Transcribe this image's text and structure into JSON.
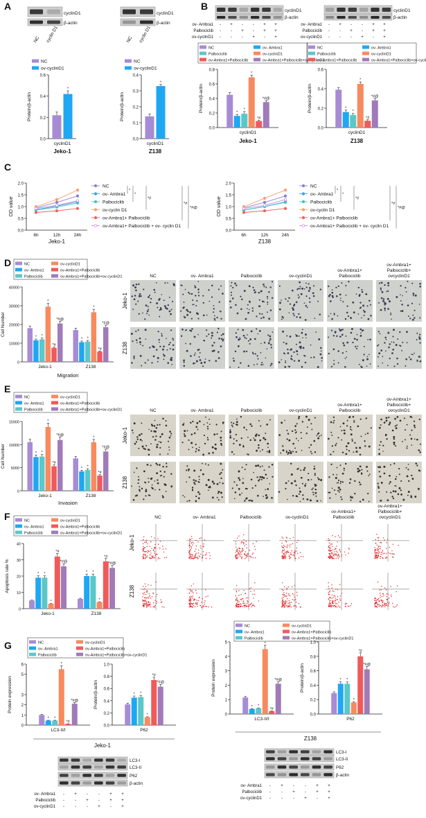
{
  "colors": {
    "NC": "#a78bd4",
    "ovAmbra1": "#1fa7f2",
    "palbociclib": "#5cc7c9",
    "ovCyclinD1": "#f78a5e",
    "ovAmbraPalbo": "#f05a5a",
    "ovAll": "#a07bb8",
    "line_NC": "#8c7fd4",
    "line_ambra": "#3aa0e8",
    "line_palbo": "#45c0c0",
    "line_cyc": "#f4a070",
    "line_ambpal": "#ee6262",
    "line_all": "#c48ad8"
  },
  "panels": {
    "A": {
      "letter": "A",
      "blot_labels": [
        "cyclinD1",
        "β-actin"
      ],
      "lanes": [
        "NC",
        "cyclin D1"
      ],
      "legend": [
        "NC",
        "ov-cyclinD1"
      ],
      "ylabel": "Protein/β-actin",
      "xcat": "cyclinD1",
      "cells": [
        "Jeko-1",
        "Z138"
      ]
    },
    "B": {
      "letter": "B",
      "blot_labels": [
        "cyclinD1",
        "β-actin"
      ],
      "treat_rows": [
        "ov- Ambra1",
        "Palbociclib",
        "ov-cyclinD1"
      ],
      "treat_signs": [
        [
          "-",
          "+",
          "-",
          "-",
          "+",
          "+"
        ],
        [
          "-",
          "-",
          "+",
          "-",
          "+",
          "+"
        ],
        [
          "-",
          "-",
          "-",
          "+",
          "-",
          "+"
        ]
      ],
      "legend": [
        "NC",
        "ov- Ambra1",
        "Palbociclib",
        "ov-cyclinD1",
        "ov-Ambra1+Palbociclib",
        "ov-Ambra1+Palbociclib+ov-cyclinD1"
      ],
      "ylabel": "Protein/β-actin",
      "xcat": "cyclinD1",
      "cells": [
        "Jeko-1",
        "Z138"
      ]
    },
    "C": {
      "letter": "C",
      "ylabel": "OD value",
      "times": [
        "6h",
        "12h",
        "24h"
      ],
      "legend": [
        "NC",
        "ov- Ambra1",
        "Palbociclib",
        "ov-cyclin D1",
        "ov-Ambra1+ Palbociclib",
        "ov-Ambra1+ Palbociclib + ov- cyclin D1"
      ],
      "sig": [
        "*",
        "*",
        "*#",
        "*#",
        "*#@"
      ],
      "cells": [
        "Jeko-1",
        "Z138"
      ]
    },
    "D": {
      "letter": "D",
      "legend": [
        "NC",
        "ov-cyclinD1",
        "ov- Ambra1",
        "ov-Ambra1+Palbociclib",
        "Palbociclib",
        "ov-Ambra1+Palbociclib+ov-cyclinD1"
      ],
      "ylabel": "Cell Number",
      "title": "Migration",
      "groups": [
        "NC",
        "ov- Ambra1",
        "Palbociclib",
        "ov-cyclinD1",
        "ov-Ambra1+\nPalbociclib",
        "ov-Ambra1+\nPalbociclib+\novcyclinD1"
      ],
      "rows": [
        "Jeko-1",
        "Z138"
      ],
      "cells": [
        "Jeko-1",
        "Z138"
      ]
    },
    "E": {
      "letter": "E",
      "legend": [
        "NC",
        "ov-cyclinD1",
        "ov- Ambra1",
        "ov-Ambra1+Palbociclib",
        "Palbociclib",
        "ov-Ambra1+Palbociclib+ov-cyclinD1"
      ],
      "ylabel": "Cell Number",
      "title": "Invasion",
      "groups": [
        "NC",
        "ov- Ambra1",
        "Palbociclib",
        "ov-cyclinD1",
        "ov-Ambra1+\nPalbociclib",
        "ov-Ambra1+\nPalbociclib+\novcyclinD1"
      ],
      "rows": [
        "Jeko-1",
        "Z138"
      ],
      "cells": [
        "Jeko-1",
        "Z138"
      ]
    },
    "F": {
      "letter": "F",
      "legend": [
        "NC",
        "ov-cyclinD1",
        "ov- Ambra1",
        "ov-Ambra1+Palbociclib",
        "Palbociclib",
        "ov-Ambra1+Palbociclib+ov-cyclinD1"
      ],
      "ylabel": "Apoptosis rate %",
      "groups": [
        "NC",
        "ov- Ambra1",
        "Palbociclib",
        "ov-cyclinD1",
        "ov-Ambra1+\nPalbociclib",
        "ov-Ambra1+\nPalbociclib+\novcyclinD1"
      ],
      "rows": [
        "Jeko-1",
        "Z138"
      ],
      "cells": [
        "Jeko-1",
        "Z138"
      ]
    },
    "G": {
      "letter": "G",
      "legend": [
        "NC",
        "ov-cyclinD1",
        "ov- Ambra1",
        "ov-Ambra1+Palbociclib",
        "Palbociclib",
        "ov-Ambra1+Palbociclib+ov-cyclinD1"
      ],
      "ylabel_left": "Protein expression",
      "ylabel_right": "Protein/β-actin",
      "xcat_left": "LC3-II/I",
      "xcat_right": "P62",
      "blot_labels": [
        "LC3-I",
        "LC3-II",
        "P62",
        "β-actin"
      ],
      "treat_rows": [
        "ov- Ambra1",
        "Palbociclib",
        "ov-cyclinD1"
      ],
      "treat_signs": [
        [
          "-",
          "+",
          "-",
          "-",
          "+",
          "+"
        ],
        [
          "-",
          "-",
          "+",
          "-",
          "+",
          "+"
        ],
        [
          "-",
          "-",
          "-",
          "+",
          "-",
          "+"
        ]
      ],
      "cells": [
        "Jeko-1",
        "Z138"
      ]
    }
  },
  "chart_data": [
    {
      "id": "A-Jeko1",
      "type": "bar",
      "title": "Jeko-1",
      "categories": [
        "cyclinD1"
      ],
      "ylabel": "Protein/β-actin",
      "ylim": [
        0,
        0.6
      ],
      "yticks": [
        0,
        0.2,
        0.4,
        0.6
      ],
      "series": [
        {
          "name": "NC",
          "values": [
            0.22
          ],
          "err": [
            0.03
          ]
        },
        {
          "name": "ov-cyclinD1",
          "values": [
            0.42
          ],
          "err": [
            0.03
          ],
          "sig": "*"
        }
      ]
    },
    {
      "id": "A-Z138",
      "type": "bar",
      "title": "Z138",
      "categories": [
        "cyclinD1"
      ],
      "ylabel": "Protein/β-actin",
      "ylim": [
        0,
        0.4
      ],
      "yticks": [
        0,
        0.1,
        0.2,
        0.3,
        0.4
      ],
      "series": [
        {
          "name": "NC",
          "values": [
            0.14
          ],
          "err": [
            0.015
          ]
        },
        {
          "name": "ov-cyclinD1",
          "values": [
            0.33
          ],
          "err": [
            0.01
          ],
          "sig": "*"
        }
      ]
    },
    {
      "id": "B-Jeko1",
      "type": "bar",
      "title": "Jeko-1",
      "categories": [
        "cyclinD1"
      ],
      "ylabel": "Protein/β-actin",
      "ylim": [
        0,
        0.8
      ],
      "yticks": [
        0,
        0.2,
        0.4,
        0.6,
        0.8
      ],
      "series": [
        {
          "name": "NC",
          "values": [
            0.45
          ],
          "err": [
            0.03
          ]
        },
        {
          "name": "ov- Ambra1",
          "values": [
            0.16
          ],
          "err": [
            0.02
          ],
          "sig": "*"
        },
        {
          "name": "Palbociclib",
          "values": [
            0.19
          ],
          "err": [
            0.03
          ],
          "sig": "*"
        },
        {
          "name": "ov-cyclinD1",
          "values": [
            0.69
          ],
          "err": [
            0.03
          ],
          "sig": "*"
        },
        {
          "name": "ov-Ambra1+Palbociclib",
          "values": [
            0.09
          ],
          "err": [
            0.01
          ],
          "sig": "*#"
        },
        {
          "name": "ov-Ambra1+Palbociclib+ov-cyclinD1",
          "values": [
            0.35
          ],
          "err": [
            0.02
          ],
          "sig": "*#@"
        }
      ]
    },
    {
      "id": "B-Z138",
      "type": "bar",
      "title": "Z138",
      "categories": [
        "cyclinD1"
      ],
      "ylabel": "Protein/β-actin",
      "ylim": [
        0,
        0.6
      ],
      "yticks": [
        0,
        0.2,
        0.4,
        0.6
      ],
      "series": [
        {
          "name": "NC",
          "values": [
            0.39
          ],
          "err": [
            0.02
          ]
        },
        {
          "name": "ov- Ambra1",
          "values": [
            0.16
          ],
          "err": [
            0.02
          ],
          "sig": "*"
        },
        {
          "name": "Palbociclib",
          "values": [
            0.13
          ],
          "err": [
            0.015
          ],
          "sig": "*"
        },
        {
          "name": "ov-cyclinD1",
          "values": [
            0.45
          ],
          "err": [
            0.02
          ],
          "sig": "*"
        },
        {
          "name": "ov-Ambra1+Palbociclib",
          "values": [
            0.07
          ],
          "err": [
            0.01
          ],
          "sig": "*#"
        },
        {
          "name": "ov-Ambra1+Palbociclib+ov-cyclinD1",
          "values": [
            0.28
          ],
          "err": [
            0.02
          ],
          "sig": "*#@"
        }
      ]
    },
    {
      "id": "C-Jeko1",
      "type": "line",
      "title": "Jeko-1",
      "x": [
        "6h",
        "12h",
        "24h"
      ],
      "ylabel": "OD value",
      "ylim": [
        0,
        2.0
      ],
      "yticks": [
        0,
        0.5,
        1.0,
        1.5,
        2.0
      ],
      "series": [
        {
          "name": "NC",
          "values": [
            0.95,
            1.18,
            1.45
          ]
        },
        {
          "name": "ov- Ambra1",
          "values": [
            0.87,
            1.02,
            1.2
          ]
        },
        {
          "name": "Palbociclib",
          "values": [
            0.85,
            0.98,
            1.15
          ]
        },
        {
          "name": "ov-cyclin D1",
          "values": [
            1.0,
            1.3,
            1.7
          ]
        },
        {
          "name": "ov-Ambra1+ Palbociclib",
          "values": [
            0.75,
            0.82,
            0.92
          ]
        },
        {
          "name": "ov-Ambra1+ Palbociclib + ov- cyclin D1",
          "values": [
            0.92,
            1.05,
            1.25
          ]
        }
      ]
    },
    {
      "id": "C-Z138",
      "type": "line",
      "title": "Z138",
      "x": [
        "6h",
        "12h",
        "24h"
      ],
      "ylabel": "OD value",
      "ylim": [
        0,
        2.0
      ],
      "yticks": [
        0,
        0.5,
        1.0,
        1.5,
        2.0
      ],
      "series": [
        {
          "name": "NC",
          "values": [
            0.95,
            1.18,
            1.45
          ]
        },
        {
          "name": "ov- Ambra1",
          "values": [
            0.85,
            1.0,
            1.2
          ]
        },
        {
          "name": "Palbociclib",
          "values": [
            0.86,
            1.0,
            1.18
          ]
        },
        {
          "name": "ov-cyclin D1",
          "values": [
            1.0,
            1.35,
            1.7
          ]
        },
        {
          "name": "ov-Ambra1+ Palbociclib",
          "values": [
            0.75,
            0.82,
            0.92
          ]
        },
        {
          "name": "ov-Ambra1+ Palbociclib + ov- cyclin D1",
          "values": [
            0.92,
            1.05,
            1.3
          ]
        }
      ]
    },
    {
      "id": "D",
      "type": "bar",
      "title": "Migration",
      "categories": [
        "Jeko-1",
        "Z138"
      ],
      "ylabel": "Cell Number",
      "ylim": [
        0,
        40000
      ],
      "yticks": [
        0,
        10000,
        20000,
        30000,
        40000
      ],
      "series": [
        {
          "name": "NC",
          "values": [
            18000,
            17000
          ]
        },
        {
          "name": "ov- Ambra1",
          "values": [
            11500,
            10500
          ],
          "sig": "*"
        },
        {
          "name": "Palbociclib",
          "values": [
            12000,
            10800
          ],
          "sig": "*"
        },
        {
          "name": "ov-cyclinD1",
          "values": [
            29500,
            26500
          ],
          "sig": "*"
        },
        {
          "name": "ov-Ambra1+Palbociclib",
          "values": [
            7500,
            5500
          ],
          "sig": "*#"
        },
        {
          "name": "ov-Ambra1+Palbociclib+ov-cyclinD1",
          "values": [
            20500,
            18500
          ],
          "sig": "*#@"
        }
      ]
    },
    {
      "id": "E",
      "type": "bar",
      "title": "Invasion",
      "categories": [
        "Jeko-1",
        "Z138"
      ],
      "ylabel": "Cell Number",
      "ylim": [
        0,
        15000
      ],
      "yticks": [
        0,
        5000,
        10000,
        15000
      ],
      "series": [
        {
          "name": "NC",
          "values": [
            10500,
            7000
          ]
        },
        {
          "name": "ov- Ambra1",
          "values": [
            7300,
            4200
          ],
          "sig": "*"
        },
        {
          "name": "Palbociclib",
          "values": [
            7400,
            4500
          ],
          "sig": "*"
        },
        {
          "name": "ov-cyclinD1",
          "values": [
            13800,
            10500
          ],
          "sig": "*"
        },
        {
          "name": "ov-Ambra1+Palbociclib",
          "values": [
            5300,
            3300
          ],
          "sig": "*#"
        },
        {
          "name": "ov-Ambra1+Palbociclib+ov-cyclinD1",
          "values": [
            11000,
            8500
          ],
          "sig": "*#@"
        }
      ]
    },
    {
      "id": "F",
      "type": "bar",
      "title": "",
      "categories": [
        "Jeko-1",
        "Z138"
      ],
      "ylabel": "Apoptosis rate %",
      "ylim": [
        0,
        40
      ],
      "yticks": [
        0,
        10,
        20,
        30,
        40
      ],
      "series": [
        {
          "name": "NC",
          "values": [
            5,
            6
          ]
        },
        {
          "name": "ov- Ambra1",
          "values": [
            19,
            20
          ],
          "sig": "*"
        },
        {
          "name": "Palbociclib",
          "values": [
            19,
            20
          ],
          "sig": "*"
        },
        {
          "name": "ov-cyclinD1",
          "values": [
            3,
            4
          ],
          "sig": "*"
        },
        {
          "name": "ov-Ambra1+Palbociclib",
          "values": [
            32,
            29
          ],
          "sig": "*#"
        },
        {
          "name": "ov-Ambra1+Palbociclib+ov-cyclinD1",
          "values": [
            26,
            25
          ],
          "sig": "*#@"
        }
      ]
    },
    {
      "id": "G-Jeko1-LC3",
      "type": "bar",
      "title": "Jeko-1",
      "categories": [
        "LC3-II/I"
      ],
      "ylabel": "Protein expression",
      "ylim": [
        0,
        6
      ],
      "yticks": [
        0,
        1,
        2,
        3,
        5,
        6
      ],
      "series": [
        {
          "name": "NC",
          "values": [
            1.0
          ]
        },
        {
          "name": "ov- Ambra1",
          "values": [
            0.45
          ],
          "sig": "*"
        },
        {
          "name": "Palbociclib",
          "values": [
            0.45
          ],
          "sig": "*"
        },
        {
          "name": "ov-cyclinD1",
          "values": [
            5.5
          ],
          "sig": "*"
        },
        {
          "name": "ov-Ambra1+Palbociclib",
          "values": [
            0.12
          ],
          "sig": "*#"
        },
        {
          "name": "ov-Ambra1+Palbociclib+ov-cyclinD1",
          "values": [
            2.1
          ],
          "sig": "*#@"
        }
      ]
    },
    {
      "id": "G-Jeko1-P62",
      "type": "bar",
      "title": "Jeko-1",
      "categories": [
        "P62"
      ],
      "ylabel": "Protein/β-actin",
      "ylim": [
        0,
        1.0
      ],
      "yticks": [
        0,
        0.2,
        0.4,
        0.6,
        0.8,
        1.0
      ],
      "series": [
        {
          "name": "NC",
          "values": [
            0.34
          ]
        },
        {
          "name": "ov- Ambra1",
          "values": [
            0.45
          ],
          "sig": "*"
        },
        {
          "name": "Palbociclib",
          "values": [
            0.46
          ],
          "sig": "*"
        },
        {
          "name": "ov-cyclinD1",
          "values": [
            0.13
          ],
          "sig": "*"
        },
        {
          "name": "ov-Ambra1+Palbociclib",
          "values": [
            0.74
          ],
          "sig": "*#"
        },
        {
          "name": "ov-Ambra1+Palbociclib+ov-cyclinD1",
          "values": [
            0.63
          ],
          "sig": "*#@"
        }
      ]
    },
    {
      "id": "G-Z138-LC3",
      "type": "bar",
      "title": "Z138",
      "categories": [
        "LC3-II/I"
      ],
      "ylabel": "Protein expression",
      "ylim": [
        0,
        5
      ],
      "yticks": [
        0,
        1,
        2,
        3,
        4,
        5
      ],
      "series": [
        {
          "name": "NC",
          "values": [
            1.15
          ]
        },
        {
          "name": "ov- Ambra1",
          "values": [
            0.35
          ],
          "sig": "*"
        },
        {
          "name": "Palbociclib",
          "values": [
            0.4
          ],
          "sig": "*"
        },
        {
          "name": "ov-cyclinD1",
          "values": [
            4.5
          ],
          "sig": "*"
        },
        {
          "name": "ov-Ambra1+Palbociclib",
          "values": [
            0.2
          ],
          "sig": "*#"
        },
        {
          "name": "ov-Ambra1+Palbociclib+ov-cyclinD1",
          "values": [
            2.1
          ],
          "sig": "*#@"
        }
      ]
    },
    {
      "id": "G-Z138-P62",
      "type": "bar",
      "title": "Z138",
      "categories": [
        "P62"
      ],
      "ylabel": "Protein/β-actin",
      "ylim": [
        0,
        1.0
      ],
      "yticks": [
        0,
        0.2,
        0.4,
        0.6,
        0.8,
        1.0
      ],
      "series": [
        {
          "name": "NC",
          "values": [
            0.29
          ]
        },
        {
          "name": "ov- Ambra1",
          "values": [
            0.42
          ],
          "sig": "*"
        },
        {
          "name": "Palbociclib",
          "values": [
            0.42
          ],
          "sig": "*"
        },
        {
          "name": "ov-cyclinD1",
          "values": [
            0.16
          ],
          "sig": "*"
        },
        {
          "name": "ov-Ambra1+Palbociclib",
          "values": [
            0.8
          ],
          "sig": "*#"
        },
        {
          "name": "ov-Ambra1+Palbociclib+ov-cyclinD1",
          "values": [
            0.62
          ],
          "sig": "*#@"
        }
      ]
    }
  ]
}
